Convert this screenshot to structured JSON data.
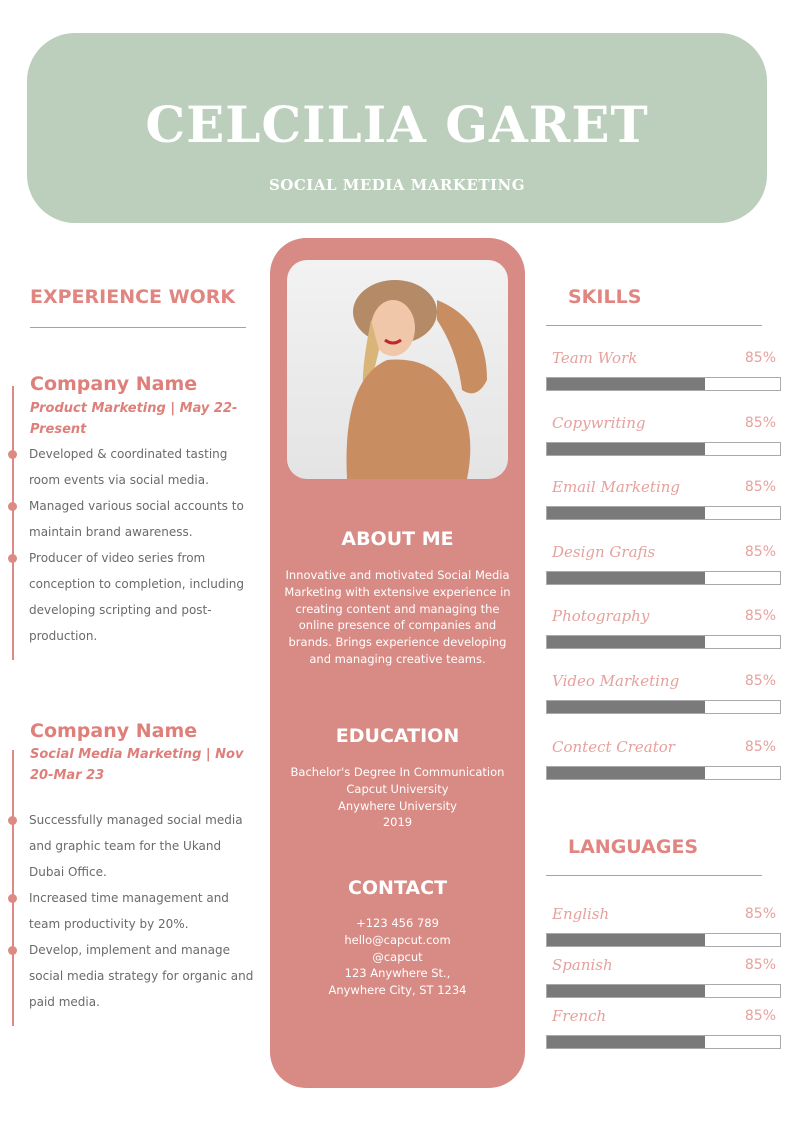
{
  "header": {
    "name": "CELCILIA GARET",
    "role": "SOCIAL MEDIA MARKETING"
  },
  "experience": {
    "title": "EXPERIENCE WORK",
    "jobs": [
      {
        "company": "Company Name",
        "position": "Product Marketing | May 22-Present",
        "bullets": [
          "Developed & coordinated tasting room events via social media.",
          "Managed various social accounts to maintain brand awareness.",
          "Producer of video series from conception to completion, including developing scripting and post-production."
        ]
      },
      {
        "company": "Company Name",
        "position": "Social Media Marketing | Nov 20-Mar 23",
        "bullets": [
          "Successfully managed social media and graphic team for the Ukand Dubai Office.",
          "Increased time management and team productivity by 20%.",
          "Develop, implement and manage social media strategy for organic and paid media."
        ]
      }
    ]
  },
  "about": {
    "title": "ABOUT ME",
    "text": "Innovative and motivated Social Media Marketing with extensive experience in creating content and managing the online presence of companies and brands. Brings experience developing and managing creative teams."
  },
  "education": {
    "title": "EDUCATION",
    "lines": [
      "Bachelor's Degree In Communication",
      "Capcut University",
      "Anywhere University",
      "2019"
    ]
  },
  "contact": {
    "title": "CONTACT",
    "lines": [
      "+123  456 789",
      "hello@capcut.com",
      "@capcut",
      "123 Anywhere St.,",
      "Anywhere City, ST 1234"
    ]
  },
  "skills": {
    "title": "SKILLS",
    "items": [
      {
        "label": "Team Work",
        "pct": "85%",
        "fill": 0.68
      },
      {
        "label": "Copywriting",
        "pct": "85%",
        "fill": 0.68
      },
      {
        "label": "Email Marketing",
        "pct": "85%",
        "fill": 0.68
      },
      {
        "label": "Design Grafis",
        "pct": "85%",
        "fill": 0.68
      },
      {
        "label": "Photography",
        "pct": "85%",
        "fill": 0.68
      },
      {
        "label": "Video Marketing",
        "pct": "85%",
        "fill": 0.68
      },
      {
        "label": "Contect Creator",
        "pct": "85%",
        "fill": 0.68
      }
    ]
  },
  "languages": {
    "title": "LANGUAGES",
    "items": [
      {
        "label": "English",
        "pct": "85%",
        "fill": 0.68
      },
      {
        "label": "Spanish",
        "pct": "85%",
        "fill": 0.68
      },
      {
        "label": "French",
        "pct": "85%",
        "fill": 0.68
      }
    ]
  },
  "colors": {
    "header_bg": "#bccfbc",
    "accent": "#d88a84",
    "bar": "#7a7a7a"
  }
}
